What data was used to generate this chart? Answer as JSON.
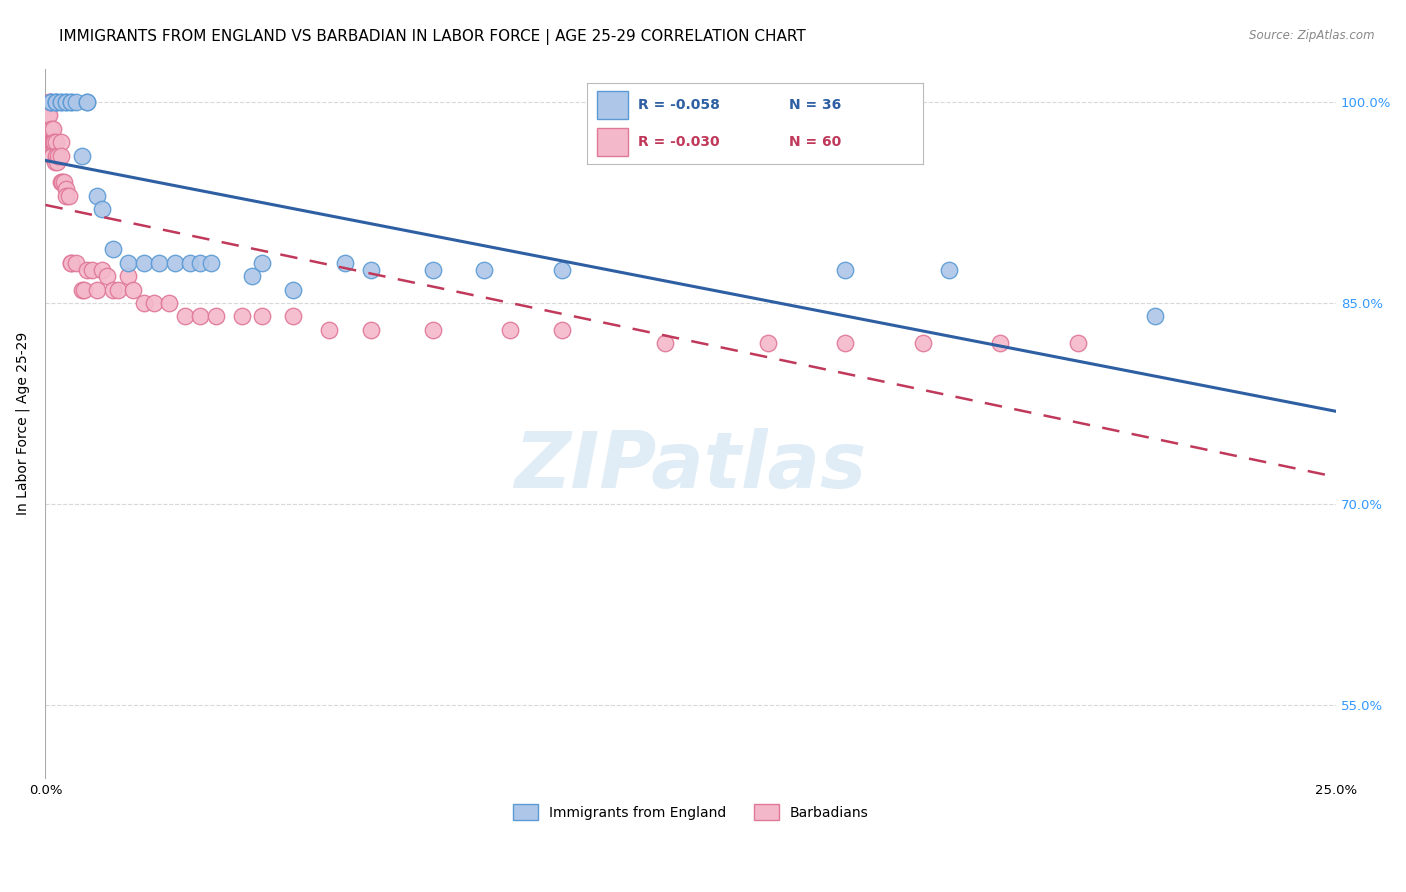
{
  "title": "IMMIGRANTS FROM ENGLAND VS BARBADIAN IN LABOR FORCE | AGE 25-29 CORRELATION CHART",
  "source": "Source: ZipAtlas.com",
  "ylabel": "In Labor Force | Age 25-29",
  "legend_labels": [
    "Immigrants from England",
    "Barbadians"
  ],
  "legend_r": [
    "R = -0.058",
    "N = 36"
  ],
  "legend_r2": [
    "R = -0.030",
    "N = 60"
  ],
  "england_color": "#aec6e8",
  "england_edge": "#5b9bd5",
  "barbadian_color": "#f4b8cb",
  "barbadian_edge": "#e07898",
  "trendline_england_color": "#2e5fa3",
  "trendline_barbadian_color": "#c0395a",
  "england_x": [
    0.001,
    0.001,
    0.002,
    0.002,
    0.002,
    0.003,
    0.003,
    0.004,
    0.004,
    0.005,
    0.005,
    0.006,
    0.007,
    0.008,
    0.008,
    0.01,
    0.011,
    0.013,
    0.016,
    0.019,
    0.022,
    0.025,
    0.028,
    0.03,
    0.032,
    0.04,
    0.042,
    0.048,
    0.058,
    0.063,
    0.075,
    0.085,
    0.1,
    0.155,
    0.175,
    0.215
  ],
  "england_y": [
    1.0,
    1.0,
    1.0,
    1.0,
    1.0,
    1.0,
    1.0,
    1.0,
    1.0,
    1.0,
    1.0,
    1.0,
    0.96,
    1.0,
    1.0,
    0.93,
    0.92,
    0.89,
    0.88,
    0.88,
    0.88,
    0.88,
    0.88,
    0.88,
    0.88,
    0.87,
    0.88,
    0.86,
    0.88,
    0.875,
    0.875,
    0.875,
    0.875,
    0.875,
    0.875,
    0.84
  ],
  "barbadian_x": [
    0.0002,
    0.0003,
    0.0005,
    0.0006,
    0.0007,
    0.0008,
    0.001,
    0.001,
    0.0012,
    0.0013,
    0.0015,
    0.0015,
    0.0016,
    0.0018,
    0.002,
    0.002,
    0.0022,
    0.0025,
    0.003,
    0.003,
    0.003,
    0.0032,
    0.0035,
    0.004,
    0.004,
    0.0045,
    0.005,
    0.005,
    0.006,
    0.007,
    0.0075,
    0.008,
    0.009,
    0.01,
    0.011,
    0.012,
    0.013,
    0.014,
    0.016,
    0.017,
    0.019,
    0.021,
    0.024,
    0.027,
    0.03,
    0.033,
    0.038,
    0.042,
    0.048,
    0.055,
    0.063,
    0.075,
    0.09,
    0.1,
    0.12,
    0.14,
    0.155,
    0.17,
    0.185,
    0.2
  ],
  "barbadian_y": [
    0.97,
    0.99,
    0.99,
    1.0,
    0.99,
    1.0,
    0.97,
    0.98,
    0.97,
    0.96,
    0.97,
    0.98,
    0.97,
    0.955,
    0.97,
    0.96,
    0.955,
    0.96,
    0.97,
    0.94,
    0.96,
    0.94,
    0.94,
    0.935,
    0.93,
    0.93,
    0.88,
    0.88,
    0.88,
    0.86,
    0.86,
    0.875,
    0.875,
    0.86,
    0.875,
    0.87,
    0.86,
    0.86,
    0.87,
    0.86,
    0.85,
    0.85,
    0.85,
    0.84,
    0.84,
    0.84,
    0.84,
    0.84,
    0.84,
    0.83,
    0.83,
    0.83,
    0.83,
    0.83,
    0.82,
    0.82,
    0.82,
    0.82,
    0.82,
    0.82
  ],
  "xlim": [
    0.0,
    0.25
  ],
  "ylim": [
    0.495,
    1.025
  ],
  "yticks": [
    0.55,
    0.7,
    0.85,
    1.0
  ],
  "ytick_labels": [
    "55.0%",
    "70.0%",
    "85.0%",
    "100.0%"
  ],
  "xticks": [
    0.0,
    0.05,
    0.1,
    0.15,
    0.2,
    0.25
  ],
  "xtick_labels": [
    "0.0%",
    "",
    "",
    "",
    "",
    "25.0%"
  ],
  "watermark_text": "ZIPatlas",
  "bg_color": "#ffffff",
  "grid_color": "#d8d8d8",
  "title_fontsize": 11,
  "axis_label_fontsize": 10,
  "tick_fontsize": 9.5
}
